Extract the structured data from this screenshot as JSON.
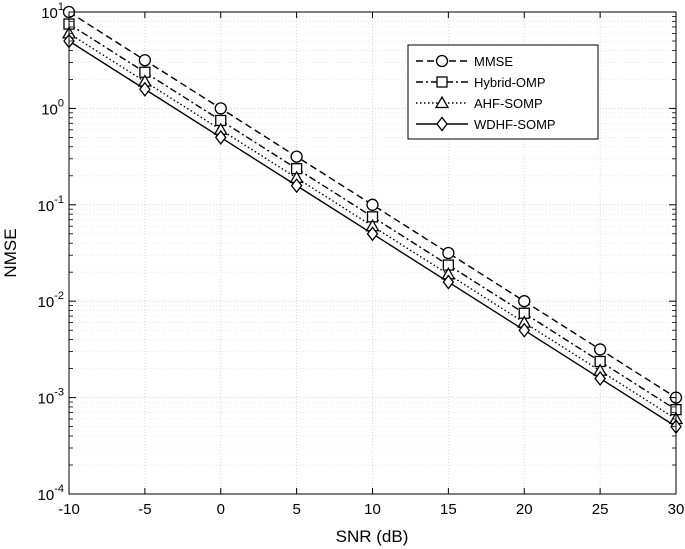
{
  "chart_data": {
    "type": "line",
    "title": "",
    "xlabel": "SNR (dB)",
    "ylabel": "NMSE",
    "xscale": "linear",
    "yscale": "log",
    "xlim": [
      -10,
      30
    ],
    "ylim": [
      0.0001,
      10
    ],
    "grid": true,
    "legend_position": "top-right",
    "x": [
      -10,
      -5,
      0,
      5,
      10,
      15,
      20,
      25,
      30
    ],
    "x_tick_labels": [
      "-10",
      "-5",
      "0",
      "5",
      "10",
      "15",
      "20",
      "25",
      "30"
    ],
    "y_ticks": [
      {
        "value": 10,
        "base": "10",
        "exp": "1"
      },
      {
        "value": 1,
        "base": "10",
        "exp": "0"
      },
      {
        "value": 0.1,
        "base": "10",
        "exp": "-1"
      },
      {
        "value": 0.01,
        "base": "10",
        "exp": "-2"
      },
      {
        "value": 0.001,
        "base": "10",
        "exp": "-3"
      },
      {
        "value": 0.0001,
        "base": "10",
        "exp": "-4"
      }
    ],
    "series": [
      {
        "name": "MMSE",
        "marker": "circle",
        "dash": "dashed",
        "color": "#000000",
        "values": [
          10,
          3.16,
          1.0,
          0.316,
          0.1,
          0.0316,
          0.01,
          0.00316,
          0.001
        ]
      },
      {
        "name": "Hybrid-OMP",
        "marker": "square",
        "dash": "dashdot",
        "color": "#000000",
        "values": [
          7.5,
          2.37,
          0.75,
          0.237,
          0.075,
          0.0237,
          0.0075,
          0.00237,
          0.00075
        ]
      },
      {
        "name": "AHF-SOMP",
        "marker": "triangle",
        "dash": "dotted",
        "color": "#000000",
        "values": [
          6.0,
          1.9,
          0.6,
          0.19,
          0.06,
          0.019,
          0.006,
          0.0019,
          0.0006
        ]
      },
      {
        "name": "WDHF-SOMP",
        "marker": "diamond",
        "dash": "solid",
        "color": "#000000",
        "values": [
          5.0,
          1.58,
          0.5,
          0.158,
          0.05,
          0.0158,
          0.005,
          0.00158,
          0.0005
        ]
      }
    ]
  }
}
